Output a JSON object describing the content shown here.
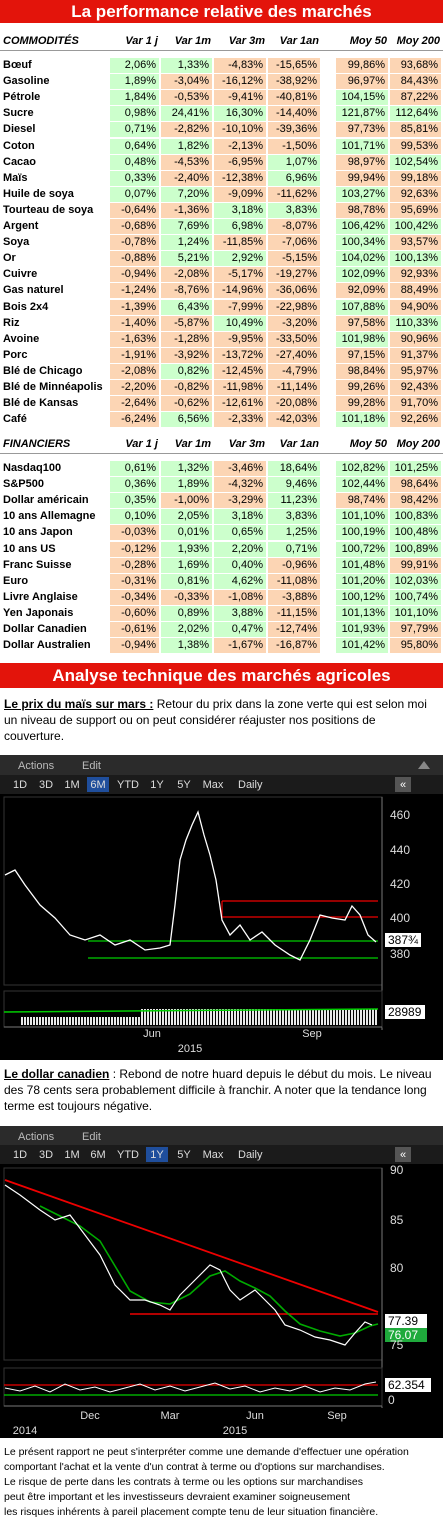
{
  "header": {
    "title": "La performance relative des marchés"
  },
  "commodities": {
    "columns": [
      "COMMODITÉS",
      "Var 1 j",
      "Var 1m",
      "Var 3m",
      "Var 1an",
      "Moy 50",
      "Moy 200"
    ],
    "rows": [
      [
        "Bœuf",
        "2,06%",
        "1,33%",
        "-4,83%",
        "-15,65%",
        "99,86%",
        "93,68%"
      ],
      [
        "Gasoline",
        "1,89%",
        "-3,04%",
        "-16,12%",
        "-38,92%",
        "96,97%",
        "84,43%"
      ],
      [
        "Pétrole",
        "1,84%",
        "-0,53%",
        "-9,41%",
        "-40,81%",
        "104,15%",
        "87,22%"
      ],
      [
        "Sucre",
        "0,98%",
        "24,41%",
        "16,30%",
        "-14,40%",
        "121,87%",
        "112,64%"
      ],
      [
        "Diesel",
        "0,71%",
        "-2,82%",
        "-10,10%",
        "-39,36%",
        "97,73%",
        "85,81%"
      ],
      [
        "Coton",
        "0,64%",
        "1,82%",
        "-2,13%",
        "-1,50%",
        "101,71%",
        "99,53%"
      ],
      [
        "Cacao",
        "0,48%",
        "-4,53%",
        "-6,95%",
        "1,07%",
        "98,97%",
        "102,54%"
      ],
      [
        "Maïs",
        "0,33%",
        "-2,40%",
        "-12,38%",
        "6,96%",
        "99,94%",
        "99,18%"
      ],
      [
        "Huile de soya",
        "0,07%",
        "7,20%",
        "-9,09%",
        "-11,62%",
        "103,27%",
        "92,63%"
      ],
      [
        "Tourteau de soya",
        "-0,64%",
        "-1,36%",
        "3,18%",
        "3,83%",
        "98,78%",
        "95,69%"
      ],
      [
        "Argent",
        "-0,68%",
        "7,69%",
        "6,98%",
        "-8,07%",
        "106,42%",
        "100,42%"
      ],
      [
        "Soya",
        "-0,78%",
        "1,24%",
        "-11,85%",
        "-7,06%",
        "100,34%",
        "93,57%"
      ],
      [
        "Or",
        "-0,88%",
        "5,21%",
        "2,92%",
        "-5,15%",
        "104,02%",
        "100,13%"
      ],
      [
        "Cuivre",
        "-0,94%",
        "-2,08%",
        "-5,17%",
        "-19,27%",
        "102,09%",
        "92,93%"
      ],
      [
        "Gas naturel",
        "-1,24%",
        "-8,76%",
        "-14,96%",
        "-36,06%",
        "92,09%",
        "88,49%"
      ],
      [
        "Bois 2x4",
        "-1,39%",
        "6,43%",
        "-7,99%",
        "-22,98%",
        "107,88%",
        "94,90%"
      ],
      [
        "Riz",
        "-1,40%",
        "-5,87%",
        "10,49%",
        "-3,20%",
        "97,58%",
        "110,33%"
      ],
      [
        "Avoine",
        "-1,63%",
        "-1,28%",
        "-9,95%",
        "-33,50%",
        "101,98%",
        "90,96%"
      ],
      [
        "Porc",
        "-1,91%",
        "-3,92%",
        "-13,72%",
        "-27,40%",
        "97,15%",
        "91,37%"
      ],
      [
        "Blé de Chicago",
        "-2,08%",
        "0,82%",
        "-12,45%",
        "-4,79%",
        "98,84%",
        "95,97%"
      ],
      [
        "Blé de Minnéapolis",
        "-2,20%",
        "-0,82%",
        "-11,98%",
        "-11,14%",
        "99,26%",
        "92,43%"
      ],
      [
        "Blé de Kansas",
        "-2,64%",
        "-0,62%",
        "-12,61%",
        "-20,08%",
        "99,28%",
        "91,70%"
      ],
      [
        "Café",
        "-6,24%",
        "6,56%",
        "-2,33%",
        "-42,03%",
        "101,18%",
        "92,26%"
      ]
    ]
  },
  "financials": {
    "columns": [
      "FINANCIERS",
      "Var 1 j",
      "Var 1m",
      "Var 3m",
      "Var 1an",
      "Moy 50",
      "Moy 200"
    ],
    "rows": [
      [
        "Nasdaq100",
        "0,61%",
        "1,32%",
        "-3,46%",
        "18,64%",
        "102,82%",
        "101,25%"
      ],
      [
        "S&P500",
        "0,36%",
        "1,89%",
        "-4,32%",
        "9,46%",
        "102,44%",
        "98,64%"
      ],
      [
        "Dollar américain",
        "0,35%",
        "-1,00%",
        "-3,29%",
        "11,23%",
        "98,74%",
        "98,42%"
      ],
      [
        "10 ans Allemagne",
        "0,10%",
        "2,05%",
        "3,18%",
        "3,83%",
        "101,10%",
        "100,83%"
      ],
      [
        "10 ans Japon",
        "-0,03%",
        "0,01%",
        "0,65%",
        "1,25%",
        "100,19%",
        "100,48%"
      ],
      [
        "10 ans US",
        "-0,12%",
        "1,93%",
        "2,20%",
        "0,71%",
        "100,72%",
        "100,89%"
      ],
      [
        "Franc Suisse",
        "-0,28%",
        "1,69%",
        "0,40%",
        "-0,96%",
        "101,48%",
        "99,91%"
      ],
      [
        "Euro",
        "-0,31%",
        "0,81%",
        "4,62%",
        "-11,08%",
        "101,20%",
        "102,03%"
      ],
      [
        "Livre Anglaise",
        "-0,34%",
        "-0,33%",
        "-1,08%",
        "-3,88%",
        "100,12%",
        "100,74%"
      ],
      [
        "Yen Japonais",
        "-0,60%",
        "0,89%",
        "3,88%",
        "-11,15%",
        "101,13%",
        "101,10%"
      ],
      [
        "Dollar Canadien",
        "-0,61%",
        "2,02%",
        "0,47%",
        "-12,74%",
        "101,93%",
        "97,79%"
      ],
      [
        "Dollar Australien",
        "-0,94%",
        "1,38%",
        "-1,67%",
        "-16,87%",
        "101,42%",
        "95,80%"
      ]
    ]
  },
  "section_title": "Analyse technique des marchés agricoles",
  "paragraph1": {
    "lead": "Le prix du maïs sur mars :",
    "text": " Retour du prix dans la zone verte qui est selon moi un niveau de support ou on peut considérer réajuster nos positions de couverture."
  },
  "chart1": {
    "actions": "Actions",
    "edit": "Edit",
    "ranges": [
      "1D",
      "3D",
      "1M",
      "6M",
      "YTD",
      "1Y",
      "5Y",
      "Max"
    ],
    "active": "6M",
    "interval": "Daily",
    "y_labels": [
      460,
      440,
      420,
      400,
      380
    ],
    "last_price": "387¾",
    "volume": "28989",
    "x_labels": [
      "Jun",
      "Sep"
    ],
    "year_labels": [
      "2015"
    ]
  },
  "paragraph2": {
    "lead": "Le dollar canadien",
    "text": " : Rebond de notre huard depuis le début du mois. Le niveau des 78 cents sera probablement difficile à franchir. A noter que la tendance long terme est toujours négative."
  },
  "chart2": {
    "actions": "Actions",
    "edit": "Edit",
    "ranges": [
      "1D",
      "3D",
      "1M",
      "6M",
      "YTD",
      "1Y",
      "5Y",
      "Max"
    ],
    "active": "1Y",
    "interval": "Daily",
    "y_labels": [
      90,
      85,
      80,
      75
    ],
    "last_price": "77.39",
    "average": "76.07",
    "indicator": "62.354",
    "indicator_zero": "0",
    "x_labels": [
      "Dec",
      "Mar",
      "Jun",
      "Sep"
    ],
    "year_labels": [
      "2014",
      "2015"
    ]
  },
  "disclaimer": [
    "Le présent rapport ne peut s'interpréter comme une demande d'effectuer une opération",
    "comportant l'achat et la vente d'un contrat à terme ou d'options sur marchandises.",
    "Le risque de perte dans les contrats à terme ou les options sur marchandises",
    "peut être important et les investisseurs devraient examiner soigneusement",
    "les risques inhérents à pareil placement compte tenu de leur situation financière."
  ]
}
